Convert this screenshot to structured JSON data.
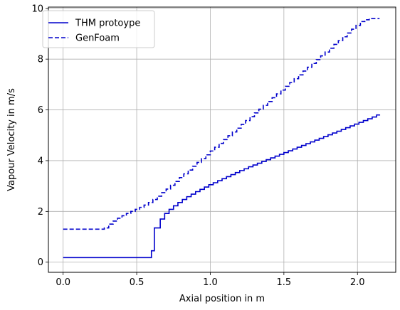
{
  "chart_data": {
    "type": "line",
    "xlabel": "Axial position in m",
    "ylabel": "Vapour Velocity in m/s",
    "xlim": [
      -0.1,
      2.26
    ],
    "ylim": [
      -0.4,
      10.05
    ],
    "xticks": [
      0.0,
      0.5,
      1.0,
      1.5,
      2.0
    ],
    "yticks": [
      0,
      2,
      4,
      6,
      8,
      10
    ],
    "xtick_labels": [
      "0.0",
      "0.5",
      "1.0",
      "1.5",
      "2.0"
    ],
    "ytick_labels": [
      "0",
      "2",
      "4",
      "6",
      "8",
      "10"
    ],
    "grid": true,
    "legend_position": "upper-left",
    "series": [
      {
        "name": "THM protoype",
        "style": "solid",
        "color": "#0000cc",
        "step": true,
        "x": [
          0.0,
          0.6,
          0.62,
          0.66,
          0.69,
          0.72,
          0.75,
          0.78,
          0.81,
          0.84,
          0.87,
          0.9,
          0.93,
          0.96,
          0.99,
          1.02,
          1.05,
          1.08,
          1.11,
          1.14,
          1.17,
          1.2,
          1.23,
          1.26,
          1.29,
          1.32,
          1.35,
          1.38,
          1.41,
          1.44,
          1.47,
          1.5,
          1.53,
          1.56,
          1.59,
          1.62,
          1.65,
          1.68,
          1.71,
          1.74,
          1.77,
          1.8,
          1.83,
          1.86,
          1.89,
          1.92,
          1.95,
          1.98,
          2.01,
          2.04,
          2.07,
          2.1,
          2.13,
          2.15
        ],
        "y": [
          0.18,
          0.45,
          1.35,
          1.7,
          1.92,
          2.08,
          2.22,
          2.35,
          2.47,
          2.58,
          2.68,
          2.78,
          2.87,
          2.96,
          3.05,
          3.13,
          3.21,
          3.29,
          3.37,
          3.45,
          3.53,
          3.61,
          3.68,
          3.76,
          3.83,
          3.9,
          3.97,
          4.04,
          4.11,
          4.18,
          4.25,
          4.32,
          4.39,
          4.46,
          4.53,
          4.6,
          4.67,
          4.74,
          4.81,
          4.88,
          4.95,
          5.02,
          5.09,
          5.16,
          5.23,
          5.3,
          5.37,
          5.44,
          5.51,
          5.58,
          5.65,
          5.72,
          5.8,
          5.82
        ]
      },
      {
        "name": "GenFoam",
        "style": "dashed",
        "color": "#0000cc",
        "step": true,
        "x": [
          0.0,
          0.28,
          0.31,
          0.34,
          0.37,
          0.4,
          0.43,
          0.46,
          0.49,
          0.52,
          0.55,
          0.58,
          0.61,
          0.64,
          0.67,
          0.7,
          0.73,
          0.76,
          0.79,
          0.82,
          0.85,
          0.88,
          0.91,
          0.94,
          0.97,
          1.0,
          1.03,
          1.06,
          1.09,
          1.12,
          1.15,
          1.18,
          1.21,
          1.24,
          1.27,
          1.3,
          1.33,
          1.36,
          1.39,
          1.42,
          1.45,
          1.48,
          1.51,
          1.54,
          1.57,
          1.6,
          1.63,
          1.66,
          1.69,
          1.72,
          1.75,
          1.78,
          1.81,
          1.84,
          1.87,
          1.9,
          1.93,
          1.96,
          1.99,
          2.02,
          2.05,
          2.08,
          2.11,
          2.14,
          2.15
        ],
        "y": [
          1.3,
          1.35,
          1.5,
          1.62,
          1.73,
          1.83,
          1.92,
          2.0,
          2.08,
          2.16,
          2.25,
          2.35,
          2.47,
          2.6,
          2.74,
          2.88,
          3.03,
          3.18,
          3.33,
          3.48,
          3.63,
          3.78,
          3.93,
          4.08,
          4.23,
          4.38,
          4.53,
          4.68,
          4.83,
          4.98,
          5.13,
          5.28,
          5.43,
          5.58,
          5.73,
          5.88,
          6.03,
          6.18,
          6.33,
          6.48,
          6.63,
          6.78,
          6.93,
          7.08,
          7.23,
          7.38,
          7.53,
          7.68,
          7.83,
          7.98,
          8.13,
          8.28,
          8.43,
          8.58,
          8.73,
          8.88,
          9.03,
          9.18,
          9.33,
          9.48,
          9.55,
          9.6,
          9.6,
          9.6,
          9.6
        ]
      }
    ]
  }
}
